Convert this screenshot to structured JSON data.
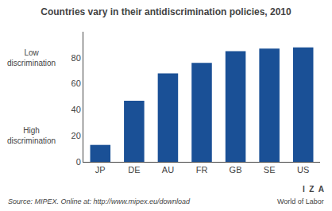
{
  "chart_data": {
    "type": "bar",
    "title": "Countries vary in their antidiscrimination policies, 2010",
    "categories": [
      "JP",
      "DE",
      "AU",
      "FR",
      "GB",
      "SE",
      "US"
    ],
    "values": [
      13,
      47,
      68,
      76,
      85,
      87,
      88
    ],
    "color": "#1a5096",
    "ylim": [
      0,
      100
    ],
    "yticks": [
      0,
      20,
      40,
      60,
      80
    ],
    "grid": false,
    "annotations": [
      "Low\ndiscrimination",
      "High\ndiscrimination",
      "Source: MIPEX. Online at: http://www.mipex.eu/download",
      "I  Z  A",
      "World of Labor"
    ]
  }
}
